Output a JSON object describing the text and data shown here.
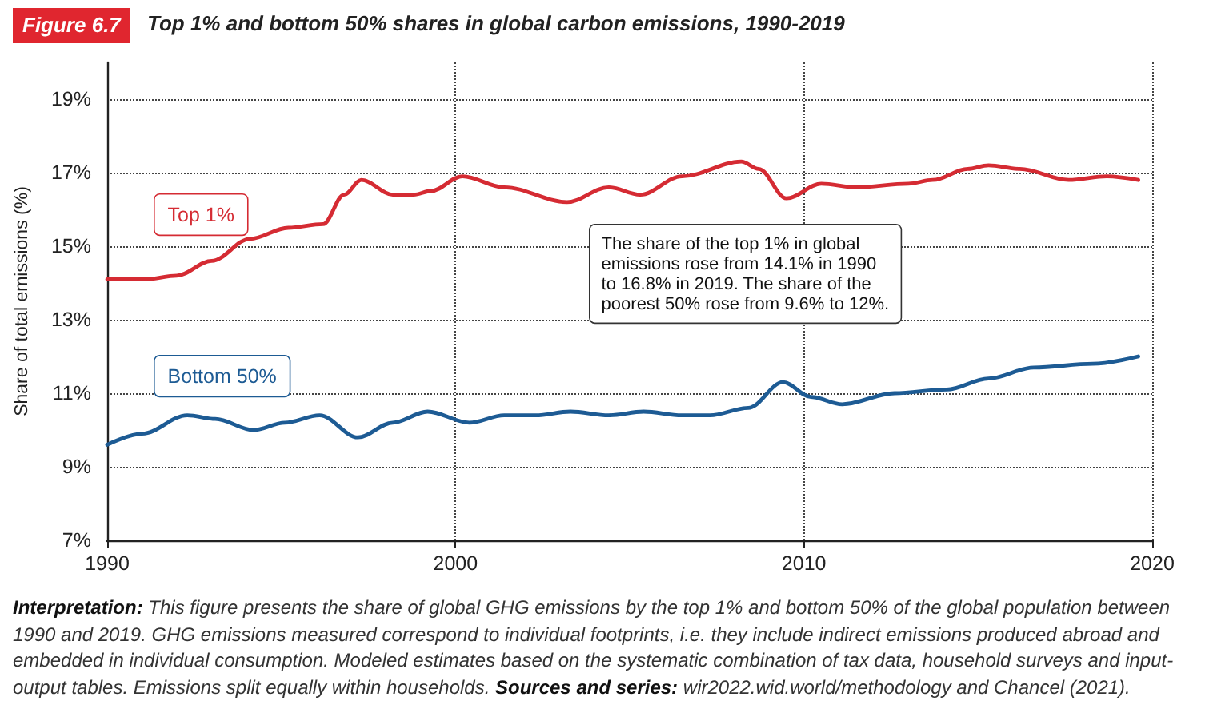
{
  "chart_data": {
    "type": "line",
    "title": "Top 1% and bottom 50% shares in global carbon emissions, 1990-2019",
    "ylabel": "Share of total emissions (%)",
    "series": [
      {
        "name": "Top 1%",
        "color": "#d52b33",
        "x": [
          1990,
          1991.1,
          1992,
          1993,
          1994.1,
          1995.2,
          1996.2,
          1996.8,
          1997.3,
          1998.2,
          1998.8,
          1999.3,
          2000.2,
          2001.4,
          2003.2,
          2004.4,
          2005.3,
          2006.5,
          2008.2,
          2008.7,
          2009.5,
          2010.5,
          2011.5,
          2013,
          2013.7,
          2014.7,
          2015.3,
          2016.2,
          2017.6,
          2018.7,
          2019.6
        ],
        "values": [
          14.1,
          14.1,
          14.2,
          14.6,
          15.2,
          15.5,
          15.6,
          16.4,
          16.8,
          16.4,
          16.4,
          16.5,
          16.9,
          16.6,
          16.2,
          16.6,
          16.4,
          16.9,
          17.3,
          17.1,
          16.3,
          16.7,
          16.6,
          16.7,
          16.8,
          17.1,
          17.2,
          17.1,
          16.8,
          16.9,
          16.8
        ]
      },
      {
        "name": "Bottom 50%",
        "color": "#1d5b94",
        "x": [
          1990,
          1991,
          1992.3,
          1993.1,
          1994.2,
          1995.1,
          1996.1,
          1997.2,
          1998.2,
          1999.2,
          2000.4,
          2001.4,
          2002.3,
          2003.3,
          2004.4,
          2005.4,
          2006.5,
          2007.3,
          2008.4,
          2009.4,
          2010.2,
          2011.1,
          2012.6,
          2014.1,
          2015.3,
          2016.6,
          2018.3,
          2019.6
        ],
        "values": [
          9.6,
          9.9,
          10.4,
          10.3,
          10.0,
          10.2,
          10.4,
          9.8,
          10.2,
          10.5,
          10.2,
          10.4,
          10.4,
          10.5,
          10.4,
          10.5,
          10.4,
          10.4,
          10.6,
          11.3,
          10.9,
          10.7,
          11.0,
          11.1,
          11.4,
          11.7,
          11.8,
          12
        ]
      }
    ],
    "xlim": [
      1990,
      2020
    ],
    "xticks": [
      1990,
      2000,
      2010,
      2020
    ],
    "ylim": [
      7,
      20
    ],
    "yticks": [
      {
        "value": 7,
        "label": "7%"
      },
      {
        "value": 9,
        "label": "9%"
      },
      {
        "value": 11,
        "label": "11%"
      },
      {
        "value": 13,
        "label": "13%"
      },
      {
        "value": 15,
        "label": "15%"
      },
      {
        "value": 17,
        "label": "17%"
      },
      {
        "value": 19,
        "label": "19%"
      }
    ],
    "grid": true,
    "marker": "none",
    "line_style": "solid",
    "annotations": [
      "Figure 6.7",
      "The share of the top 1% in global emissions rose from 14.1% in 1990 to 16.8% in 2019. The share of the poorest 50% rose from 9.6% to 12%.",
      "Interpretation: This figure presents the share of global GHG emissions by the top 1% and bottom 50% of the global population between 1990 and 2019. GHG emissions measured correspond to individual footprints, i.e. they include indirect emissions produced abroad and embedded in individual consumption. Modeled estimates based on the systematic combination of tax data, household surveys and input-output tables. Emissions split equally within households. Sources and series: wir2022.wid.world/methodology and Chancel (2021)."
    ]
  }
}
